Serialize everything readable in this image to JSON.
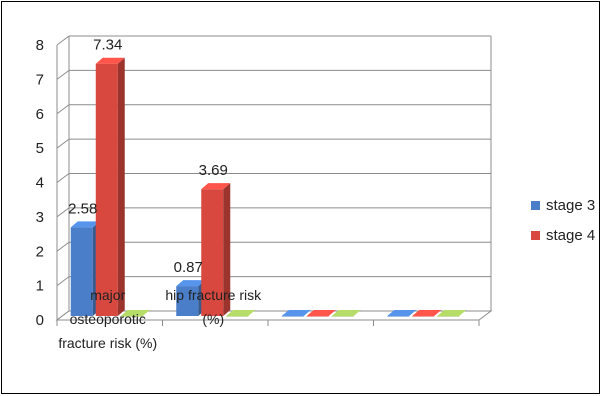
{
  "chart_data": {
    "type": "bar",
    "style": "3d-clustered-column",
    "categories": [
      [
        "major",
        "osteoporotic",
        "fracture risk (%)"
      ],
      [
        "hip fracture risk",
        "(%)"
      ],
      [
        ""
      ],
      [
        ""
      ]
    ],
    "series": [
      {
        "name": "stage 3",
        "color": "#4a7ec9",
        "values": [
          2.58,
          0.87,
          0,
          0
        ]
      },
      {
        "name": "stage 4",
        "color": "#d9483f",
        "values": [
          7.34,
          3.69,
          0,
          0
        ]
      },
      {
        "name": "",
        "color": "#9bbb59",
        "values": [
          0,
          0,
          0,
          0
        ]
      }
    ],
    "data_labels": [
      {
        "series": 0,
        "category": 0,
        "text": "2.58"
      },
      {
        "series": 1,
        "category": 0,
        "text": "7.34"
      },
      {
        "series": 0,
        "category": 1,
        "text": "0.87"
      },
      {
        "series": 1,
        "category": 1,
        "text": "3.69"
      }
    ],
    "ylim": [
      0,
      8
    ],
    "yticks": [
      "0",
      "1",
      "2",
      "3",
      "4",
      "5",
      "6",
      "7",
      "8"
    ],
    "grid": true,
    "legend": {
      "position": "right",
      "entries": [
        "stage 3",
        "stage 4"
      ]
    },
    "title": "",
    "xlabel": "",
    "ylabel": ""
  }
}
